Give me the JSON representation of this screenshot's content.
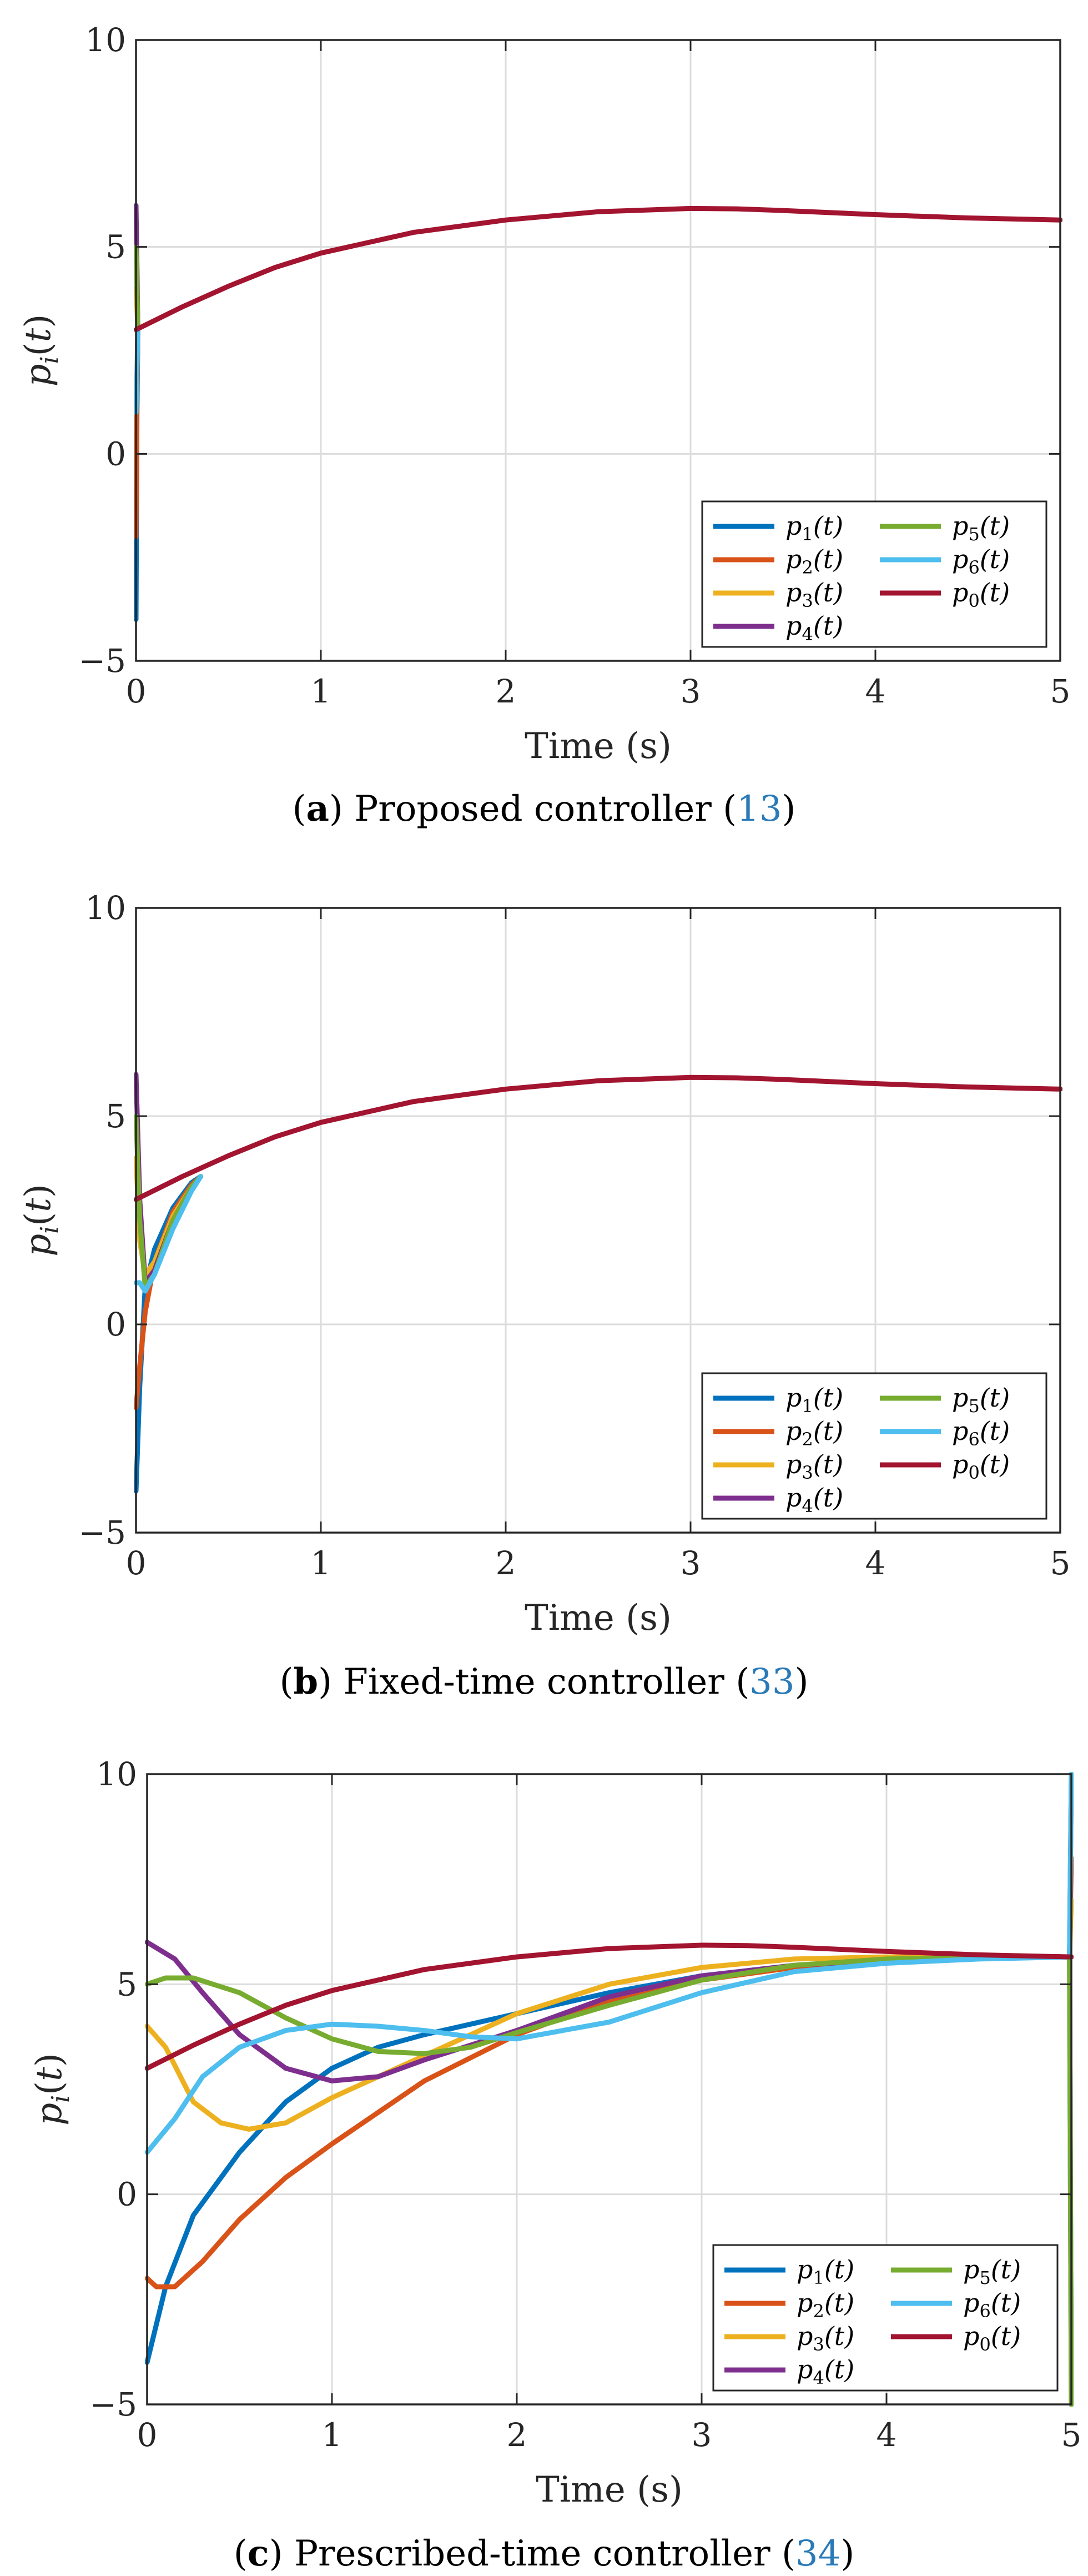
{
  "figure": {
    "series_styles": [
      {
        "key": "p1",
        "name": "p1(t)",
        "sym": "p",
        "sub": "1",
        "arg": "(t)",
        "color": "#0072BD"
      },
      {
        "key": "p2",
        "name": "p2(t)",
        "sym": "p",
        "sub": "2",
        "arg": "(t)",
        "color": "#D95319"
      },
      {
        "key": "p3",
        "name": "p3(t)",
        "sym": "p",
        "sub": "3",
        "arg": "(t)",
        "color": "#EDB120"
      },
      {
        "key": "p4",
        "name": "p4(t)",
        "sym": "p",
        "sub": "4",
        "arg": "(t)",
        "color": "#7E2F8E"
      },
      {
        "key": "p5",
        "name": "p5(t)",
        "sym": "p",
        "sub": "5",
        "arg": "(t)",
        "color": "#77AC30"
      },
      {
        "key": "p6",
        "name": "p6(t)",
        "sym": "p",
        "sub": "6",
        "arg": "(t)",
        "color": "#4DBEEE"
      },
      {
        "key": "p0",
        "name": "p0(t)",
        "sym": "p",
        "sub": "0",
        "arg": "(t)",
        "color": "#A2142F"
      }
    ]
  },
  "chart_data": [
    {
      "type": "line",
      "letter": "a",
      "caption_text": "Proposed controller",
      "caption_ref": "13",
      "xlabel": "Time (s)",
      "ylabel": "p_i(t)",
      "xlim": [
        0,
        5
      ],
      "ylim": [
        -5,
        10
      ],
      "xticks": [
        "0",
        "1",
        "2",
        "3",
        "4",
        "5"
      ],
      "yticks": [
        "−5",
        "0",
        "5",
        "10"
      ],
      "grid": true,
      "legend_position": "bottom-right",
      "series": [
        {
          "key": "p1",
          "x": [
            0,
            0.005,
            0.01
          ],
          "y": [
            -4,
            1.0,
            3.0
          ]
        },
        {
          "key": "p2",
          "x": [
            0,
            0.005,
            0.01
          ],
          "y": [
            -2,
            1.5,
            3.0
          ]
        },
        {
          "key": "p3",
          "x": [
            0,
            0.005,
            0.01
          ],
          "y": [
            4,
            3.5,
            3.0
          ]
        },
        {
          "key": "p4",
          "x": [
            0,
            0.005,
            0.01
          ],
          "y": [
            6,
            4.5,
            3.0
          ]
        },
        {
          "key": "p5",
          "x": [
            0,
            0.005,
            0.01
          ],
          "y": [
            5,
            4.0,
            3.0
          ]
        },
        {
          "key": "p6",
          "x": [
            0,
            0.005,
            0.01
          ],
          "y": [
            1,
            2.0,
            3.0
          ]
        },
        {
          "key": "p0",
          "x": [
            0,
            0.25,
            0.5,
            0.75,
            1,
            1.5,
            2,
            2.5,
            3,
            3.25,
            3.5,
            4,
            4.5,
            5
          ],
          "y": [
            3.0,
            3.55,
            4.05,
            4.5,
            4.85,
            5.35,
            5.65,
            5.85,
            5.93,
            5.92,
            5.88,
            5.78,
            5.7,
            5.65
          ]
        }
      ]
    },
    {
      "type": "line",
      "letter": "b",
      "caption_text": "Fixed-time controller",
      "caption_ref": "33",
      "xlabel": "Time (s)",
      "ylabel": "p_i(t)",
      "xlim": [
        0,
        5
      ],
      "ylim": [
        -5,
        10
      ],
      "xticks": [
        "0",
        "1",
        "2",
        "3",
        "4",
        "5"
      ],
      "yticks": [
        "−5",
        "0",
        "5",
        "10"
      ],
      "grid": true,
      "legend_position": "bottom-right",
      "series": [
        {
          "key": "p1",
          "x": [
            0,
            0.02,
            0.05,
            0.1,
            0.2,
            0.3,
            0.35
          ],
          "y": [
            -4,
            -1.5,
            0.9,
            1.8,
            2.8,
            3.4,
            3.55
          ]
        },
        {
          "key": "p2",
          "x": [
            0,
            0.02,
            0.05,
            0.1,
            0.2,
            0.3,
            0.35
          ],
          "y": [
            -2,
            -1.0,
            0.3,
            1.5,
            2.7,
            3.35,
            3.55
          ]
        },
        {
          "key": "p3",
          "x": [
            0,
            0.02,
            0.05,
            0.1,
            0.2,
            0.3,
            0.35
          ],
          "y": [
            4,
            2.0,
            1.2,
            1.5,
            2.6,
            3.3,
            3.55
          ]
        },
        {
          "key": "p4",
          "x": [
            0,
            0.02,
            0.05,
            0.1,
            0.2,
            0.3,
            0.35
          ],
          "y": [
            6,
            3.0,
            1.0,
            1.3,
            2.5,
            3.3,
            3.55
          ]
        },
        {
          "key": "p5",
          "x": [
            0,
            0.02,
            0.05,
            0.1,
            0.2,
            0.3,
            0.35
          ],
          "y": [
            5,
            2.5,
            0.9,
            1.2,
            2.5,
            3.3,
            3.55
          ]
        },
        {
          "key": "p6",
          "x": [
            0,
            0.02,
            0.05,
            0.1,
            0.2,
            0.3,
            0.35
          ],
          "y": [
            1,
            1.0,
            0.8,
            1.2,
            2.3,
            3.2,
            3.55
          ]
        },
        {
          "key": "p0",
          "x": [
            0,
            0.25,
            0.5,
            0.75,
            1,
            1.5,
            2,
            2.5,
            3,
            3.25,
            3.5,
            4,
            4.5,
            5
          ],
          "y": [
            3.0,
            3.55,
            4.05,
            4.5,
            4.85,
            5.35,
            5.65,
            5.85,
            5.93,
            5.92,
            5.88,
            5.78,
            5.7,
            5.65
          ]
        }
      ]
    },
    {
      "type": "line",
      "letter": "c",
      "caption_text": "Prescribed-time controller",
      "caption_ref": "34",
      "xlabel": "Time (s)",
      "ylabel": "p_i(t)",
      "xlim": [
        0,
        5
      ],
      "ylim": [
        -5,
        10
      ],
      "xticks": [
        "0",
        "1",
        "2",
        "3",
        "4",
        "5"
      ],
      "yticks": [
        "−5",
        "0",
        "5",
        "10"
      ],
      "grid": true,
      "legend_position": "bottom-right",
      "series": [
        {
          "key": "p1",
          "x": [
            0,
            0.1,
            0.25,
            0.5,
            0.75,
            1,
            1.25,
            1.5,
            2,
            2.5,
            3,
            3.5,
            4,
            4.5,
            4.99,
            5.0
          ],
          "y": [
            -4,
            -2.2,
            -0.5,
            1.0,
            2.2,
            3.0,
            3.5,
            3.8,
            4.3,
            4.8,
            5.2,
            5.45,
            5.58,
            5.63,
            5.65,
            -5
          ]
        },
        {
          "key": "p2",
          "x": [
            0,
            0.05,
            0.15,
            0.3,
            0.5,
            0.75,
            1,
            1.5,
            2,
            2.5,
            3,
            3.5,
            4,
            4.5,
            4.99,
            5.0
          ],
          "y": [
            -2,
            -2.2,
            -2.2,
            -1.6,
            -0.6,
            0.4,
            1.2,
            2.7,
            3.8,
            4.6,
            5.1,
            5.4,
            5.55,
            5.62,
            5.65,
            8
          ]
        },
        {
          "key": "p3",
          "x": [
            0,
            0.1,
            0.25,
            0.4,
            0.55,
            0.75,
            1,
            1.5,
            2,
            2.5,
            3,
            3.5,
            4,
            4.5,
            4.99,
            5.0
          ],
          "y": [
            4,
            3.5,
            2.2,
            1.7,
            1.55,
            1.7,
            2.3,
            3.3,
            4.3,
            5.0,
            5.4,
            5.6,
            5.65,
            5.65,
            5.65,
            7
          ]
        },
        {
          "key": "p4",
          "x": [
            0,
            0.15,
            0.3,
            0.5,
            0.75,
            1,
            1.25,
            1.5,
            2,
            2.5,
            3,
            3.5,
            4,
            4.5,
            4.99,
            5.0
          ],
          "y": [
            6,
            5.6,
            4.8,
            3.8,
            3.0,
            2.7,
            2.8,
            3.2,
            3.9,
            4.7,
            5.2,
            5.45,
            5.58,
            5.63,
            5.65,
            10
          ]
        },
        {
          "key": "p5",
          "x": [
            0,
            0.1,
            0.25,
            0.5,
            0.75,
            1,
            1.25,
            1.5,
            1.75,
            2,
            2.5,
            3,
            3.5,
            4,
            4.5,
            4.99,
            5.0
          ],
          "y": [
            5,
            5.15,
            5.15,
            4.8,
            4.2,
            3.7,
            3.4,
            3.35,
            3.5,
            3.85,
            4.5,
            5.1,
            5.45,
            5.6,
            5.63,
            5.65,
            -5
          ]
        },
        {
          "key": "p6",
          "x": [
            0,
            0.15,
            0.3,
            0.5,
            0.75,
            1,
            1.25,
            1.5,
            1.75,
            2,
            2.5,
            3,
            3.5,
            4,
            4.5,
            4.99,
            5.0
          ],
          "y": [
            1,
            1.8,
            2.8,
            3.5,
            3.9,
            4.05,
            4.0,
            3.9,
            3.75,
            3.7,
            4.1,
            4.8,
            5.3,
            5.5,
            5.6,
            5.65,
            10
          ]
        },
        {
          "key": "p0",
          "x": [
            0,
            0.25,
            0.5,
            0.75,
            1,
            1.5,
            2,
            2.5,
            3,
            3.25,
            3.5,
            4,
            4.5,
            5
          ],
          "y": [
            3.0,
            3.55,
            4.05,
            4.5,
            4.85,
            5.35,
            5.65,
            5.85,
            5.93,
            5.92,
            5.88,
            5.78,
            5.7,
            5.65
          ]
        }
      ]
    }
  ]
}
